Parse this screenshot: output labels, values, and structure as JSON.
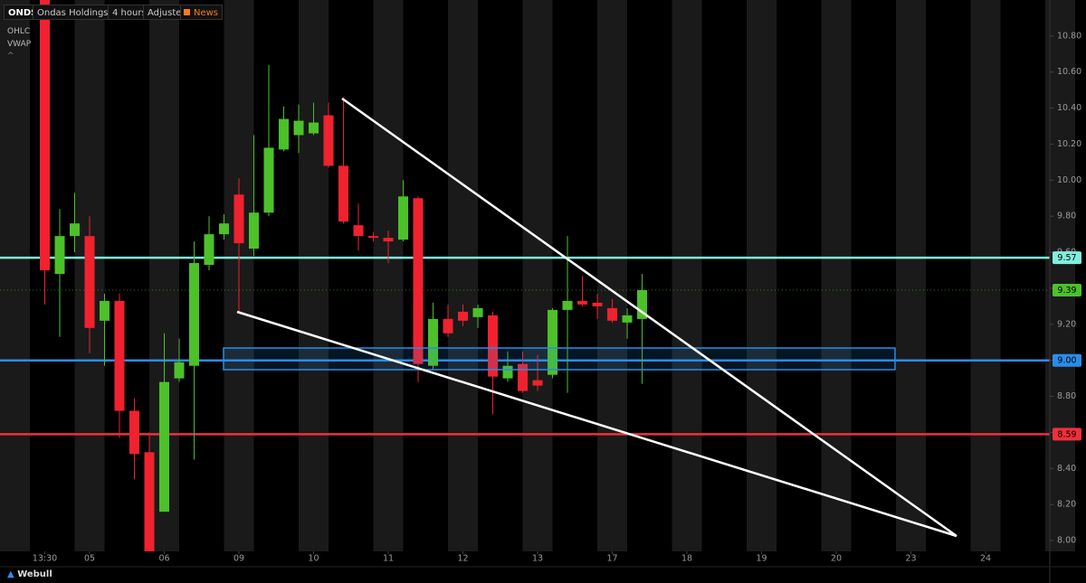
{
  "toolbar": {
    "symbol": "ONDS",
    "name": "Ondas Holdings Inc.",
    "interval": "4 hours",
    "adjust": "Adjusted",
    "news": "News",
    "indicators": [
      "OHLC",
      "VWAP"
    ]
  },
  "footer": {
    "brand": "Webull"
  },
  "chart_data": {
    "type": "candlestick",
    "ylim": [
      7.94,
      11.0
    ],
    "yticks": [
      {
        "value": 8,
        "label": "8.00"
      },
      {
        "value": 8.2,
        "label": "8.20"
      },
      {
        "value": 8.4,
        "label": "8.40"
      },
      {
        "value": 8.6,
        "label": "8.60"
      },
      {
        "value": 8.8,
        "label": "8.80"
      },
      {
        "value": 9,
        "label": "9.00"
      },
      {
        "value": 9.2,
        "label": "9.20"
      },
      {
        "value": 9.4,
        "label": "9.40"
      },
      {
        "value": 9.6,
        "label": "9.60"
      },
      {
        "value": 9.8,
        "label": "9.80"
      },
      {
        "value": 10,
        "label": "10.00"
      },
      {
        "value": 10.2,
        "label": "10.20"
      },
      {
        "value": 10.4,
        "label": "10.40"
      },
      {
        "value": 10.6,
        "label": "10.60"
      },
      {
        "value": 10.8,
        "label": "10.80"
      }
    ],
    "xlim": [
      -3,
      67.3
    ],
    "xticks": [
      {
        "value": 0,
        "label": "13:30"
      },
      {
        "value": 3,
        "label": "05"
      },
      {
        "value": 8,
        "label": "06"
      },
      {
        "value": 13,
        "label": "09"
      },
      {
        "value": 18,
        "label": "10"
      },
      {
        "value": 23,
        "label": "11"
      },
      {
        "value": 28,
        "label": "12"
      },
      {
        "value": 33,
        "label": "13"
      },
      {
        "value": 38,
        "label": "17"
      },
      {
        "value": 43,
        "label": "18"
      },
      {
        "value": 48,
        "label": "19"
      },
      {
        "value": 53,
        "label": "20"
      },
      {
        "value": 58,
        "label": "23"
      },
      {
        "value": 63,
        "label": "24"
      }
    ],
    "up_color": "#4cc12a",
    "down_color": "#f0222f",
    "open": [
      11.2,
      9.48,
      9.69,
      9.69,
      9.22,
      9.33,
      8.72,
      8.49,
      8.16,
      8.9,
      8.97,
      9.53,
      9.7,
      9.92,
      9.62,
      9.82,
      10.17,
      10.25,
      10.26,
      10.36,
      10.08,
      9.75,
      9.69,
      9.68,
      9.67,
      9.9,
      8.97,
      9.23,
      9.27,
      9.24,
      9.25,
      8.9,
      8.98,
      8.89,
      8.92,
      9.28,
      9.33,
      9.32,
      9.29,
      9.21,
      9.23
    ],
    "high": [
      11.4,
      9.84,
      9.93,
      9.8,
      9.37,
      9.37,
      8.79,
      8.6,
      9.15,
      9.12,
      9.66,
      9.8,
      9.81,
      10.01,
      10.25,
      10.64,
      10.41,
      10.42,
      10.43,
      10.43,
      10.46,
      9.87,
      9.71,
      9.72,
      10.0,
      9.91,
      9.32,
      9.31,
      9.31,
      9.31,
      9.27,
      9.05,
      9.05,
      9.03,
      9.29,
      9.69,
      9.47,
      9.37,
      9.34,
      9.29,
      9.48
    ],
    "low": [
      9.31,
      9.13,
      9.6,
      9.04,
      8.97,
      8.57,
      8.34,
      7.92,
      8.16,
      8.88,
      8.45,
      9.5,
      9.67,
      9.27,
      9.58,
      9.8,
      10.16,
      10.15,
      10.25,
      10.07,
      9.76,
      9.61,
      9.66,
      9.54,
      9.66,
      8.88,
      8.95,
      9.13,
      9.19,
      9.18,
      8.7,
      8.88,
      8.82,
      8.83,
      8.9,
      8.82,
      9.3,
      9.23,
      9.21,
      9.12,
      8.87
    ],
    "close": [
      9.5,
      9.69,
      9.76,
      9.18,
      9.33,
      8.72,
      8.48,
      7.94,
      8.88,
      8.99,
      9.54,
      9.7,
      9.76,
      9.65,
      9.82,
      10.18,
      10.34,
      10.33,
      10.32,
      10.08,
      9.77,
      9.69,
      9.68,
      9.66,
      9.91,
      8.98,
      9.23,
      9.15,
      9.22,
      9.29,
      8.91,
      8.97,
      8.83,
      8.86,
      9.28,
      9.33,
      9.31,
      9.3,
      9.22,
      9.25,
      9.39
    ],
    "price_lines": [
      {
        "value": 9.57,
        "color": "#7ff0dc",
        "style": "solid"
      },
      {
        "value": 9.39,
        "color": "#4cc12a",
        "style": "dotted"
      },
      {
        "value": 9,
        "label": "9.00",
        "color": "#2a8de8",
        "style": "solid"
      },
      {
        "value": 8.59,
        "color": "#f0303a",
        "style": "solid"
      }
    ]
  }
}
